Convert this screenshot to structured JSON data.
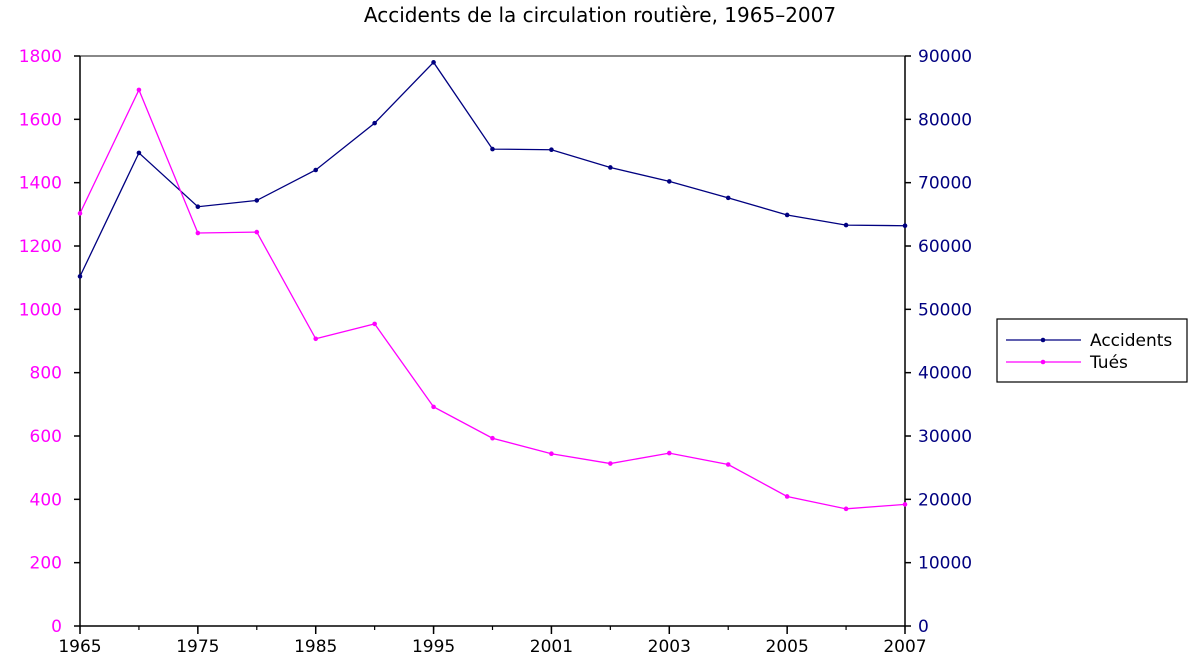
{
  "chart_data": {
    "type": "line",
    "title": "Accidents de la circulation routière, 1965–2007",
    "x_tick_labels": [
      "1965",
      "1975",
      "1985",
      "1995",
      "2001",
      "2003",
      "2005",
      "2007"
    ],
    "x_tick_index": [
      0,
      2,
      4,
      6,
      8,
      10,
      12,
      14
    ],
    "categories": [
      "1965",
      "1970",
      "1975",
      "1980",
      "1985",
      "1990",
      "1995",
      "2000",
      "2001",
      "2002",
      "2003",
      "2004",
      "2005",
      "2006",
      "2007"
    ],
    "left_axis": {
      "ylim": [
        0,
        1800
      ],
      "ticks": [
        0,
        200,
        400,
        600,
        800,
        1000,
        1200,
        1400,
        1600,
        1800
      ],
      "color": "#ff00ff"
    },
    "right_axis": {
      "ylim": [
        0,
        90000
      ],
      "ticks": [
        0,
        10000,
        20000,
        30000,
        40000,
        50000,
        60000,
        70000,
        80000,
        90000
      ],
      "color": "#000080"
    },
    "series": [
      {
        "name": "Accidents",
        "axis": "right",
        "color": "#000080",
        "values": [
          55200,
          74700,
          66200,
          67200,
          72000,
          79400,
          89000,
          75300,
          75200,
          72400,
          70200,
          67600,
          64900,
          63300,
          63200
        ]
      },
      {
        "name": "Tués",
        "axis": "left",
        "color": "#ff00ff",
        "values": [
          1303,
          1693,
          1241,
          1244,
          907,
          954,
          692,
          593,
          544,
          513,
          546,
          510,
          409,
          370,
          384
        ]
      }
    ],
    "legend": {
      "placement": "right"
    },
    "grid": false
  }
}
